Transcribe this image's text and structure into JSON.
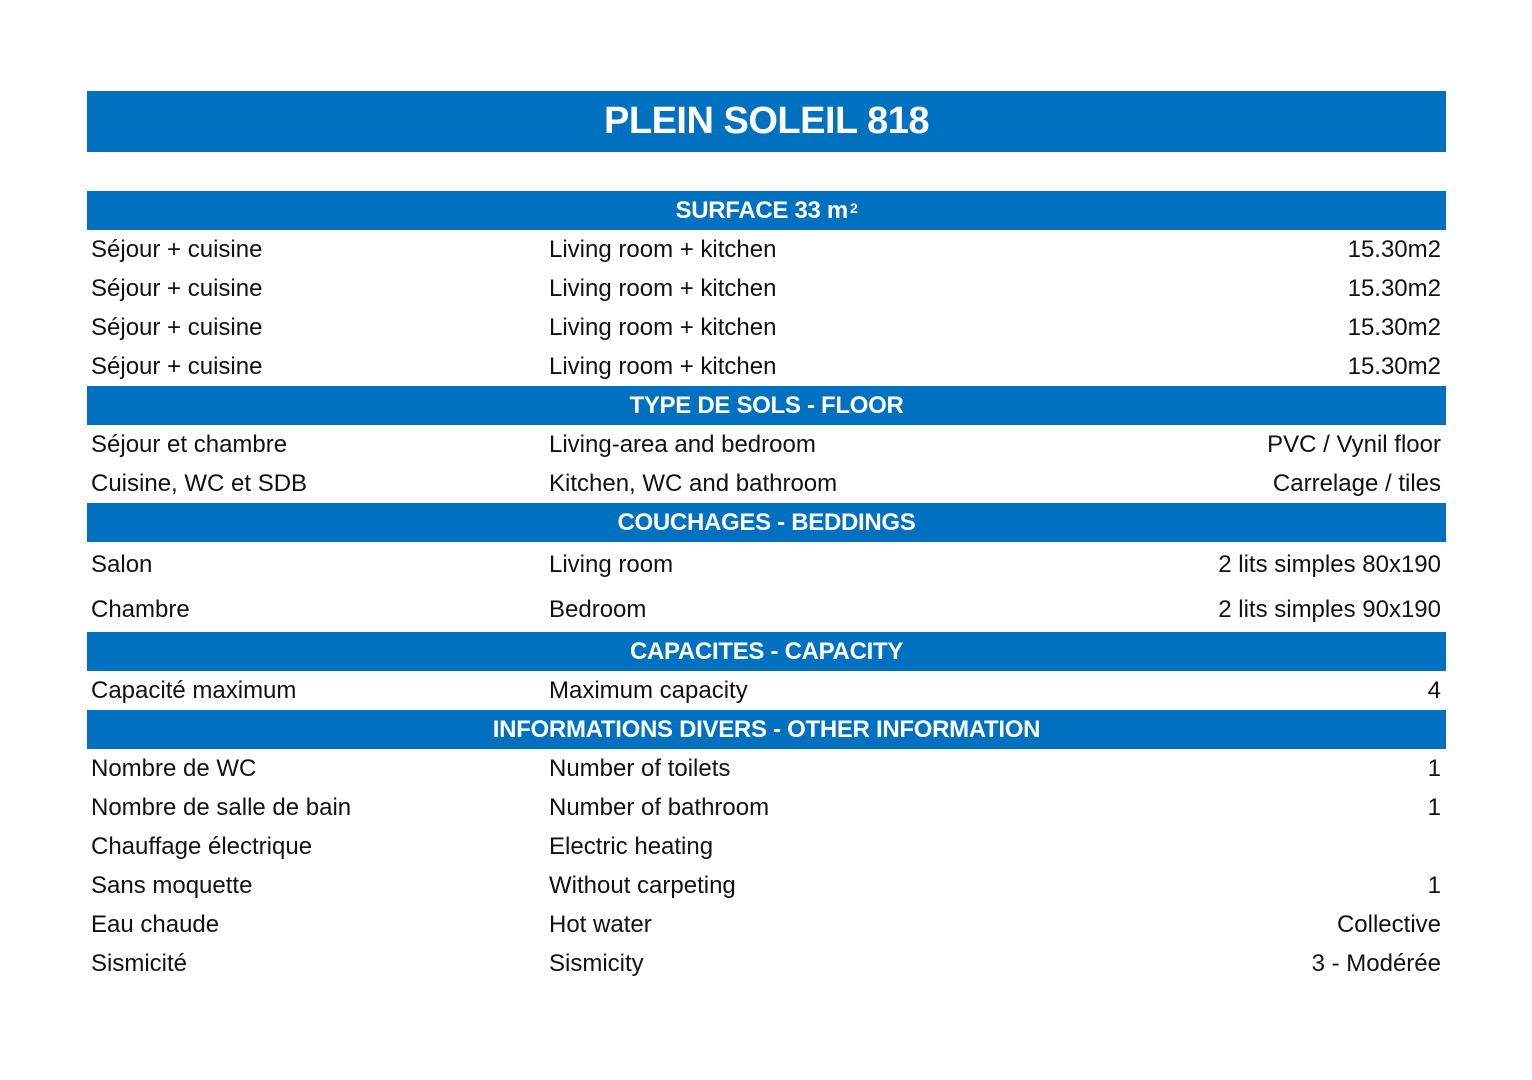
{
  "title": "PLEIN SOLEIL 818",
  "accent_color": "#0070C0",
  "sections": [
    {
      "heading": "SURFACE 33 m",
      "heading_sup": "2",
      "tall": false,
      "rows": [
        [
          "Séjour + cuisine",
          "Living room + kitchen",
          "15.30m2"
        ],
        [
          "Séjour + cuisine",
          "Living room + kitchen",
          "15.30m2"
        ],
        [
          "Séjour + cuisine",
          "Living room + kitchen",
          "15.30m2"
        ],
        [
          "Séjour + cuisine",
          "Living room + kitchen",
          "15.30m2"
        ]
      ]
    },
    {
      "heading": "TYPE DE SOLS - FLOOR",
      "tall": false,
      "rows": [
        [
          "Séjour et chambre",
          "Living-area and bedroom",
          "PVC / Vynil floor"
        ],
        [
          "Cuisine, WC et SDB",
          "Kitchen, WC and bathroom",
          "Carrelage / tiles"
        ]
      ]
    },
    {
      "heading": "COUCHAGES - BEDDINGS",
      "tall": true,
      "rows": [
        [
          "Salon",
          "Living room",
          "2 lits simples 80x190"
        ],
        [
          "Chambre",
          "Bedroom",
          "2 lits simples 90x190"
        ]
      ]
    },
    {
      "heading": "CAPACITES - CAPACITY",
      "tall": false,
      "rows": [
        [
          "Capacité maximum",
          "Maximum capacity",
          "4"
        ]
      ]
    },
    {
      "heading": "INFORMATIONS DIVERS - OTHER INFORMATION",
      "tall": false,
      "rows": [
        [
          "Nombre de WC",
          "Number of toilets",
          "1"
        ],
        [
          "Nombre de salle de bain",
          "Number of bathroom",
          "1"
        ],
        [
          "Chauffage électrique",
          "Electric heating",
          ""
        ],
        [
          "Sans moquette",
          "Without carpeting",
          "1"
        ],
        [
          "Eau chaude",
          "Hot water",
          "Collective"
        ],
        [
          "Sismicité",
          "Sismicity",
          "3 - Modérée"
        ]
      ]
    }
  ]
}
